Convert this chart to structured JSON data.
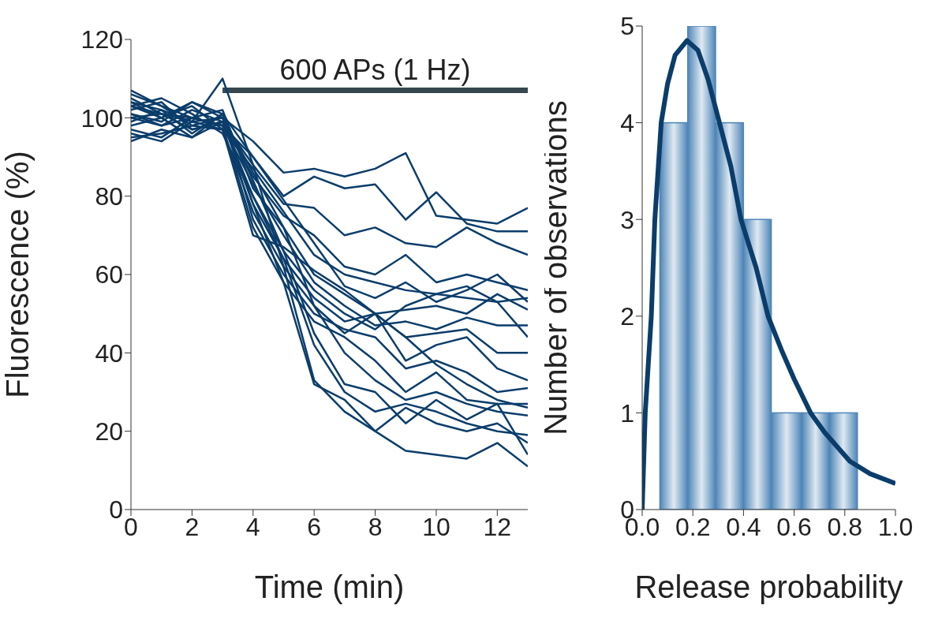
{
  "chart_data": [
    {
      "type": "line",
      "xlabel": "Time (min)",
      "ylabel": "Fluorescence (%)",
      "xlim": [
        0,
        13
      ],
      "xticks": [
        0,
        2,
        4,
        6,
        8,
        10,
        12
      ],
      "ylim": [
        0,
        120
      ],
      "yticks": [
        0,
        20,
        40,
        60,
        80,
        100,
        120
      ],
      "x": [
        0,
        1,
        2,
        3,
        4,
        5,
        6,
        7,
        8,
        9,
        10,
        11,
        12,
        13
      ],
      "line_style": "solid",
      "marker": "none",
      "annotations": [
        {
          "text": "600 APs (1 Hz)",
          "x": 8,
          "y": 107
        }
      ],
      "series": [
        {
          "color": "#37474f",
          "x": [
            3,
            13
          ],
          "values": [
            107,
            107
          ]
        },
        {
          "color": "#0b3d6b",
          "values": [
            104,
            102,
            99,
            100,
            94,
            86,
            87,
            85,
            87,
            91,
            75,
            74,
            73,
            77
          ]
        },
        {
          "color": "#0b3d6b",
          "values": [
            103,
            101,
            100,
            98,
            90,
            80,
            85,
            82,
            83,
            74,
            81,
            73,
            71,
            71
          ]
        },
        {
          "color": "#0b3d6b",
          "values": [
            102,
            104,
            97,
            99,
            88,
            78,
            77,
            70,
            72,
            68,
            67,
            72,
            68,
            65
          ]
        },
        {
          "color": "#0b3d6b",
          "values": [
            100,
            98,
            102,
            99,
            85,
            75,
            70,
            62,
            60,
            65,
            58,
            60,
            58,
            56
          ]
        },
        {
          "color": "#0b3d6b",
          "values": [
            106,
            103,
            98,
            97,
            87,
            76,
            65,
            60,
            58,
            56,
            55,
            57,
            53,
            54
          ]
        },
        {
          "color": "#0b3d6b",
          "values": [
            98,
            100,
            95,
            101,
            90,
            79,
            68,
            57,
            54,
            58,
            53,
            56,
            60,
            53
          ]
        },
        {
          "color": "#0b3d6b",
          "values": [
            101,
            99,
            104,
            100,
            86,
            72,
            60,
            55,
            50,
            51,
            52,
            50,
            55,
            51
          ]
        },
        {
          "color": "#0b3d6b",
          "values": [
            97,
            95,
            100,
            98,
            83,
            70,
            58,
            52,
            47,
            48,
            46,
            49,
            47,
            47
          ]
        },
        {
          "color": "#0b3d6b",
          "values": [
            103,
            105,
            101,
            96,
            80,
            66,
            56,
            50,
            46,
            52,
            55,
            54,
            53,
            44
          ]
        },
        {
          "color": "#0b3d6b",
          "values": [
            95,
            96,
            98,
            100,
            78,
            64,
            54,
            48,
            50,
            44,
            45,
            46,
            40,
            40
          ]
        },
        {
          "color": "#0b3d6b",
          "values": [
            104,
            100,
            103,
            97,
            76,
            62,
            52,
            45,
            50,
            38,
            42,
            44,
            36,
            33
          ]
        },
        {
          "color": "#0b3d6b",
          "values": [
            99,
            102,
            96,
            101,
            74,
            60,
            50,
            46,
            44,
            36,
            38,
            35,
            30,
            31
          ]
        },
        {
          "color": "#0b3d6b",
          "values": [
            107,
            103,
            100,
            98,
            72,
            58,
            48,
            44,
            38,
            30,
            35,
            28,
            27,
            27
          ]
        },
        {
          "color": "#0b3d6b",
          "values": [
            96,
            94,
            99,
            97,
            70,
            67,
            61,
            56,
            50,
            44,
            37,
            32,
            28,
            26
          ]
        },
        {
          "color": "#0b3d6b",
          "values": [
            101,
            98,
            100,
            102,
            82,
            72,
            52,
            40,
            33,
            28,
            30,
            27,
            25,
            24
          ]
        },
        {
          "color": "#0b3d6b",
          "values": [
            100,
            101,
            97,
            99,
            80,
            64,
            42,
            30,
            25,
            27,
            25,
            22,
            20,
            19
          ]
        },
        {
          "color": "#0b3d6b",
          "values": [
            94,
            97,
            95,
            99,
            78,
            58,
            32,
            28,
            20,
            26,
            22,
            20,
            22,
            17
          ]
        },
        {
          "color": "#0b3d6b",
          "values": [
            105,
            101,
            99,
            110,
            88,
            62,
            33,
            25,
            20,
            15,
            14,
            13,
            17,
            11
          ]
        },
        {
          "color": "#0b3d6b",
          "values": [
            103,
            100,
            104,
            101,
            84,
            66,
            45,
            32,
            30,
            22,
            28,
            23,
            27,
            14
          ]
        }
      ]
    },
    {
      "type": "histogram",
      "xlabel": "Release probability",
      "ylabel": "Number of observations",
      "xlim": [
        0,
        1
      ],
      "xticks": [
        {
          "value": 0,
          "label": "0.0"
        },
        {
          "value": 0.2,
          "label": "0.2"
        },
        {
          "value": 0.4,
          "label": "0.4"
        },
        {
          "value": 0.6,
          "label": "0.6"
        },
        {
          "value": 0.8,
          "label": "0.8"
        },
        {
          "value": 1,
          "label": "1.0"
        }
      ],
      "ylim": [
        0,
        5
      ],
      "yticks": [
        0,
        1,
        2,
        3,
        4,
        5
      ],
      "bins": [
        0.07,
        0.18,
        0.29,
        0.4,
        0.51,
        0.63,
        0.74,
        0.85
      ],
      "values": [
        4,
        5,
        4,
        3,
        1,
        1,
        1
      ],
      "color": "#4f86b8",
      "series": [
        {
          "type": "line",
          "color": "#0b3d6b",
          "x": [
            0,
            0.012,
            0.036,
            0.05,
            0.075,
            0.1,
            0.13,
            0.177,
            0.22,
            0.26,
            0.305,
            0.35,
            0.39,
            0.45,
            0.497,
            0.55,
            0.6,
            0.665,
            0.72,
            0.82,
            0.9,
            1.0
          ],
          "values": [
            0,
            1,
            2,
            3,
            4,
            4.4,
            4.7,
            4.85,
            4.75,
            4.45,
            4,
            3.55,
            3,
            2.5,
            2,
            1.65,
            1.35,
            1,
            0.8,
            0.5,
            0.37,
            0.27
          ]
        }
      ]
    }
  ]
}
